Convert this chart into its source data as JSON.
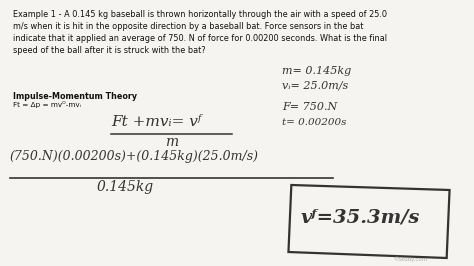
{
  "bg_color": "#f5f4f1",
  "title_text": "Example 1 - A 0.145 kg baseball is thrown horizontally through the air with a speed of 25.0\nm/s when it is hit in the opposite direction by a baseball bat. Force sensors in the bat\nindicate that it applied an average of 750. N of force for 0.00200 seconds. What is the final\nspeed of the ball after it is struck with the bat?",
  "theory_label": "Impulse-Momentum Theory",
  "theory_formula": "Ft = Δp = mvᴼ-mvᵢ",
  "font_color": "#111111",
  "handwriting_color": "#333333",
  "watermark": "©Study.com"
}
